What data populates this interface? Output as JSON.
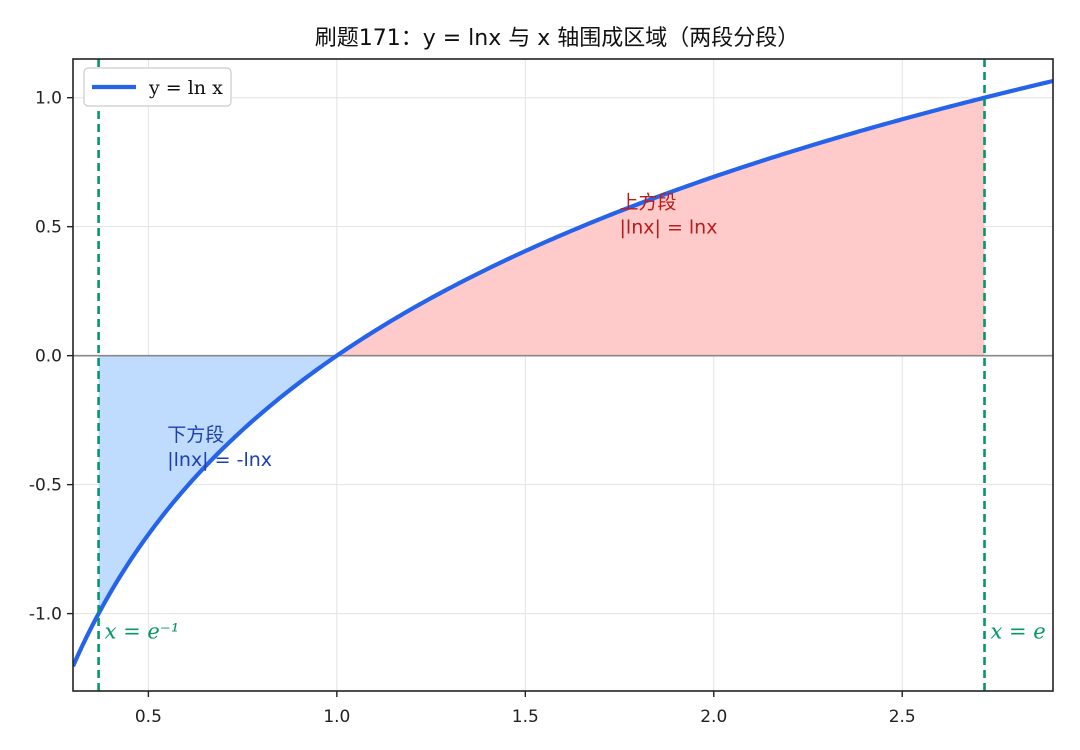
{
  "chart_data": {
    "type": "line",
    "title": "刷题171：y = lnx 与 x 轴围成区域（两段分段）",
    "xlabel": "",
    "ylabel": "",
    "xlim": [
      0.3,
      2.9
    ],
    "ylim": [
      -1.3,
      1.15
    ],
    "x_ticks": [
      {
        "value": 0.5,
        "label": "0.5"
      },
      {
        "value": 1.0,
        "label": "1.0"
      },
      {
        "value": 1.5,
        "label": "1.5"
      },
      {
        "value": 2.0,
        "label": "2.0"
      },
      {
        "value": 2.5,
        "label": "2.5"
      }
    ],
    "y_ticks": [
      {
        "value": -1.0,
        "label": "-1.0"
      },
      {
        "value": -0.5,
        "label": "-0.5"
      },
      {
        "value": 0.0,
        "label": "0.0"
      },
      {
        "value": 0.5,
        "label": "0.5"
      },
      {
        "value": 1.0,
        "label": "1.0"
      }
    ],
    "grid": true,
    "legend_position": "top-left",
    "series": [
      {
        "name": "y = ln x",
        "function": "ln(x)",
        "x_range": [
          0.3,
          2.9
        ],
        "color": "#2563eb"
      }
    ],
    "fills": [
      {
        "x_range": [
          0.36788,
          1.0
        ],
        "between": "y=ln(x) and y=0",
        "color": "#bfdbfe"
      },
      {
        "x_range": [
          1.0,
          2.71828
        ],
        "between": "y=0 and y=ln(x)",
        "color": "#fecaca"
      }
    ],
    "vertical_lines": [
      {
        "x": 0.36788,
        "label": "x = e⁻¹",
        "color": "#059669"
      },
      {
        "x": 2.71828,
        "label": "x = e",
        "color": "#059669"
      }
    ],
    "baseline": {
      "y": 0,
      "color": "#888888"
    },
    "annotations": [
      {
        "x": 1.75,
        "y": 0.57,
        "line1": "上方段",
        "line2": "|lnx| = lnx",
        "color": "#b91c1c"
      },
      {
        "x": 0.55,
        "y": -0.33,
        "line1": "下方段",
        "line2": "|lnx| = -lnx",
        "color": "#1e40af"
      }
    ]
  }
}
